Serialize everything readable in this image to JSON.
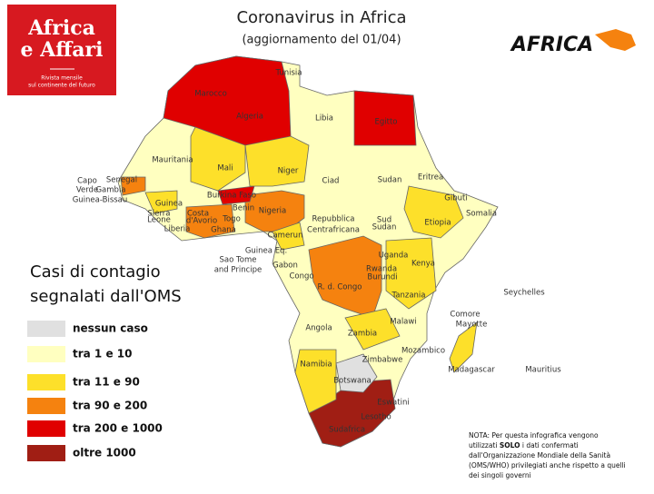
{
  "header": {
    "title": "Coronavirus in Africa",
    "subtitle": "(aggiornamento del 01/04)"
  },
  "logo": {
    "name_lines": [
      "Africa",
      "e Affari"
    ],
    "tagline_lines": [
      "Rivista mensile",
      "sul continente del futuro"
    ],
    "brand": "AFRICA"
  },
  "legend": {
    "title_lines": [
      "Casi di contagio",
      "segnalati dall'OMS"
    ],
    "items": [
      {
        "label": "nessun caso",
        "color": "#e0e0e0"
      },
      {
        "label": "tra 1 e 10",
        "color": "#ffffc0"
      },
      {
        "label": "tra 11 e 90",
        "color": "#fde02a"
      },
      {
        "label": "tra 90 e 200",
        "color": "#f5820f"
      },
      {
        "label": "tra 200 e 1000",
        "color": "#e00000"
      },
      {
        "label": "oltre 1000",
        "color": "#a01e14"
      }
    ]
  },
  "countries": [
    "Tunisia",
    "Marocco",
    "Algeria",
    "Libia",
    "Egitto",
    "Mauritania",
    "Mali",
    "Niger",
    "Ciad",
    "Sudan",
    "Eritrea",
    "Senegal",
    "Gambia",
    "Capo",
    "Verde",
    "Guinea-Bissau",
    "Guinea",
    "Burkina Faso",
    "Gibuti",
    "Somalia",
    "Etiopia",
    "Benin",
    "Nigeria",
    "Sierra",
    "Leone",
    "Costa",
    "d'Avorio",
    "Togo",
    "Liberia",
    "Ghana",
    "Repubblica",
    "Centrafricana",
    "Sud",
    "Sudan",
    "Camerun",
    "Uganda",
    "Kenya",
    "Guinea Eq.",
    "Sao Tome",
    "and Principe",
    "Gabon",
    "Congo",
    "Rwanda",
    "Burundi",
    "R. d. Congo",
    "Tanzania",
    "Seychelles",
    "Comore",
    "Mayotte",
    "Malawi",
    "Angola",
    "Zambia",
    "Mozambico",
    "Zimbabwe",
    "Madagascar",
    "Mauritius",
    "Namibia",
    "Botswana",
    "Eswatini",
    "Lesotho",
    "Sudafrica"
  ],
  "note": {
    "line1": "NOTA: Per questa infografica vengono",
    "line2_parts": [
      "utilizzati ",
      "SOLO",
      " i dati confermati"
    ],
    "line3": "dall'Organizzazione Mondiale della Sanità",
    "line4": "(OMS/WHO) privilegiati anche rispetto a quelli",
    "line5": "dei singoli  governi"
  }
}
